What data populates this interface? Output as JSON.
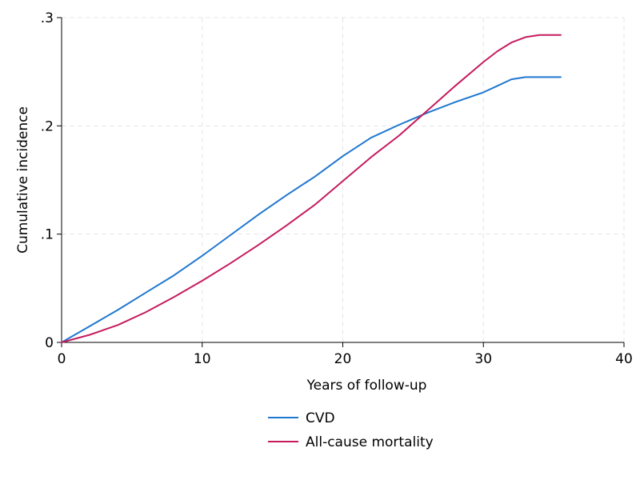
{
  "chart_data": {
    "type": "line",
    "title": "",
    "xlabel": "Years of follow-up",
    "ylabel": "Cumulative incidence",
    "xlim": [
      0,
      40
    ],
    "ylim": [
      0,
      0.3
    ],
    "xticks": [
      0,
      10,
      20,
      30,
      40
    ],
    "xtick_labels": [
      "0",
      "10",
      "20",
      "30",
      "40"
    ],
    "yticks": [
      0,
      0.1,
      0.2,
      0.3
    ],
    "ytick_labels": [
      "0",
      ".1",
      ".2",
      ".3"
    ],
    "grid": true,
    "legend_position": "bottom",
    "series": [
      {
        "name": "CVD",
        "color": "#1f77d0",
        "x": [
          0,
          2,
          4,
          6,
          8,
          10,
          12,
          14,
          16,
          18,
          20,
          22,
          24,
          26,
          28,
          30,
          31,
          32,
          33,
          34,
          35.5
        ],
        "y": [
          0,
          0.015,
          0.03,
          0.046,
          0.062,
          0.08,
          0.099,
          0.118,
          0.136,
          0.153,
          0.172,
          0.189,
          0.201,
          0.212,
          0.222,
          0.231,
          0.237,
          0.243,
          0.245,
          0.245,
          0.245
        ]
      },
      {
        "name": "All-cause mortality",
        "color": "#c51b5e",
        "x": [
          0,
          2,
          4,
          6,
          8,
          10,
          12,
          14,
          16,
          18,
          20,
          22,
          24,
          26,
          28,
          30,
          31,
          32,
          33,
          34,
          35.5
        ],
        "y": [
          0,
          0.007,
          0.016,
          0.028,
          0.042,
          0.057,
          0.073,
          0.09,
          0.108,
          0.127,
          0.149,
          0.171,
          0.191,
          0.214,
          0.237,
          0.259,
          0.269,
          0.277,
          0.282,
          0.284,
          0.284
        ]
      }
    ]
  }
}
